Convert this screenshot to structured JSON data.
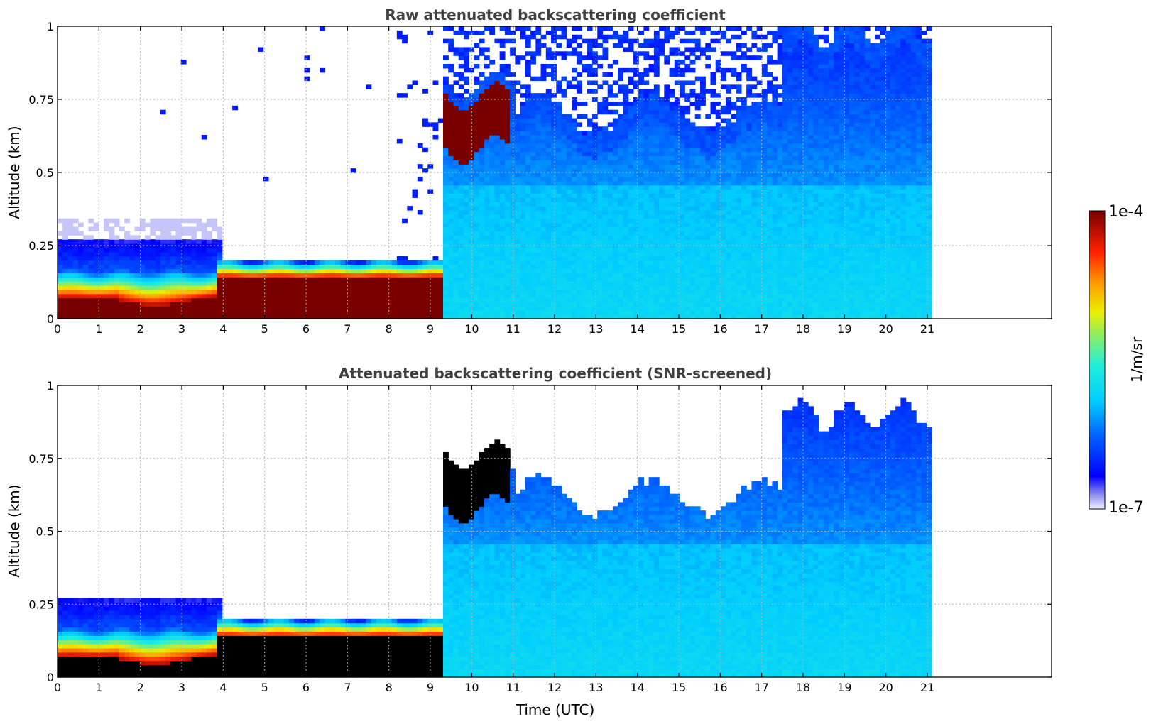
{
  "chart_data": [
    {
      "type": "heatmap",
      "title": "Raw attenuated backscattering coefficient",
      "xlabel": "",
      "ylabel": "Altitude (km)",
      "xlim": [
        0,
        24
      ],
      "ylim": [
        0,
        1
      ],
      "x_ticks": [
        "0",
        "1",
        "2",
        "3",
        "4",
        "5",
        "6",
        "7",
        "8",
        "9",
        "10",
        "11",
        "12",
        "13",
        "14",
        "15",
        "16",
        "17",
        "18",
        "19",
        "20",
        "21"
      ],
      "y_ticks": [
        "0",
        "0.25",
        "0.5",
        "0.75",
        "1"
      ],
      "grid": true,
      "data_end_time": 21.1,
      "color_scale": "log",
      "masked_high_values_black": false
    },
    {
      "type": "heatmap",
      "title": "Attenuated backscattering coefficient (SNR-screened)",
      "xlabel": "Time (UTC)",
      "ylabel": "Altitude (km)",
      "xlim": [
        0,
        24
      ],
      "ylim": [
        0,
        1
      ],
      "x_ticks": [
        "0",
        "1",
        "2",
        "3",
        "4",
        "5",
        "6",
        "7",
        "8",
        "9",
        "10",
        "11",
        "12",
        "13",
        "14",
        "15",
        "16",
        "17",
        "18",
        "19",
        "20",
        "21"
      ],
      "y_ticks": [
        "0",
        "0.25",
        "0.5",
        "0.75",
        "1"
      ],
      "grid": true,
      "data_end_time": 21.1,
      "color_scale": "log",
      "masked_high_values_black": true
    }
  ],
  "colorbar": {
    "label": "1/m/sr",
    "min_label": "1e-7",
    "max_label": "1e-4",
    "vmin": 1e-07,
    "vmax": 0.0001,
    "colormap": "jet"
  }
}
